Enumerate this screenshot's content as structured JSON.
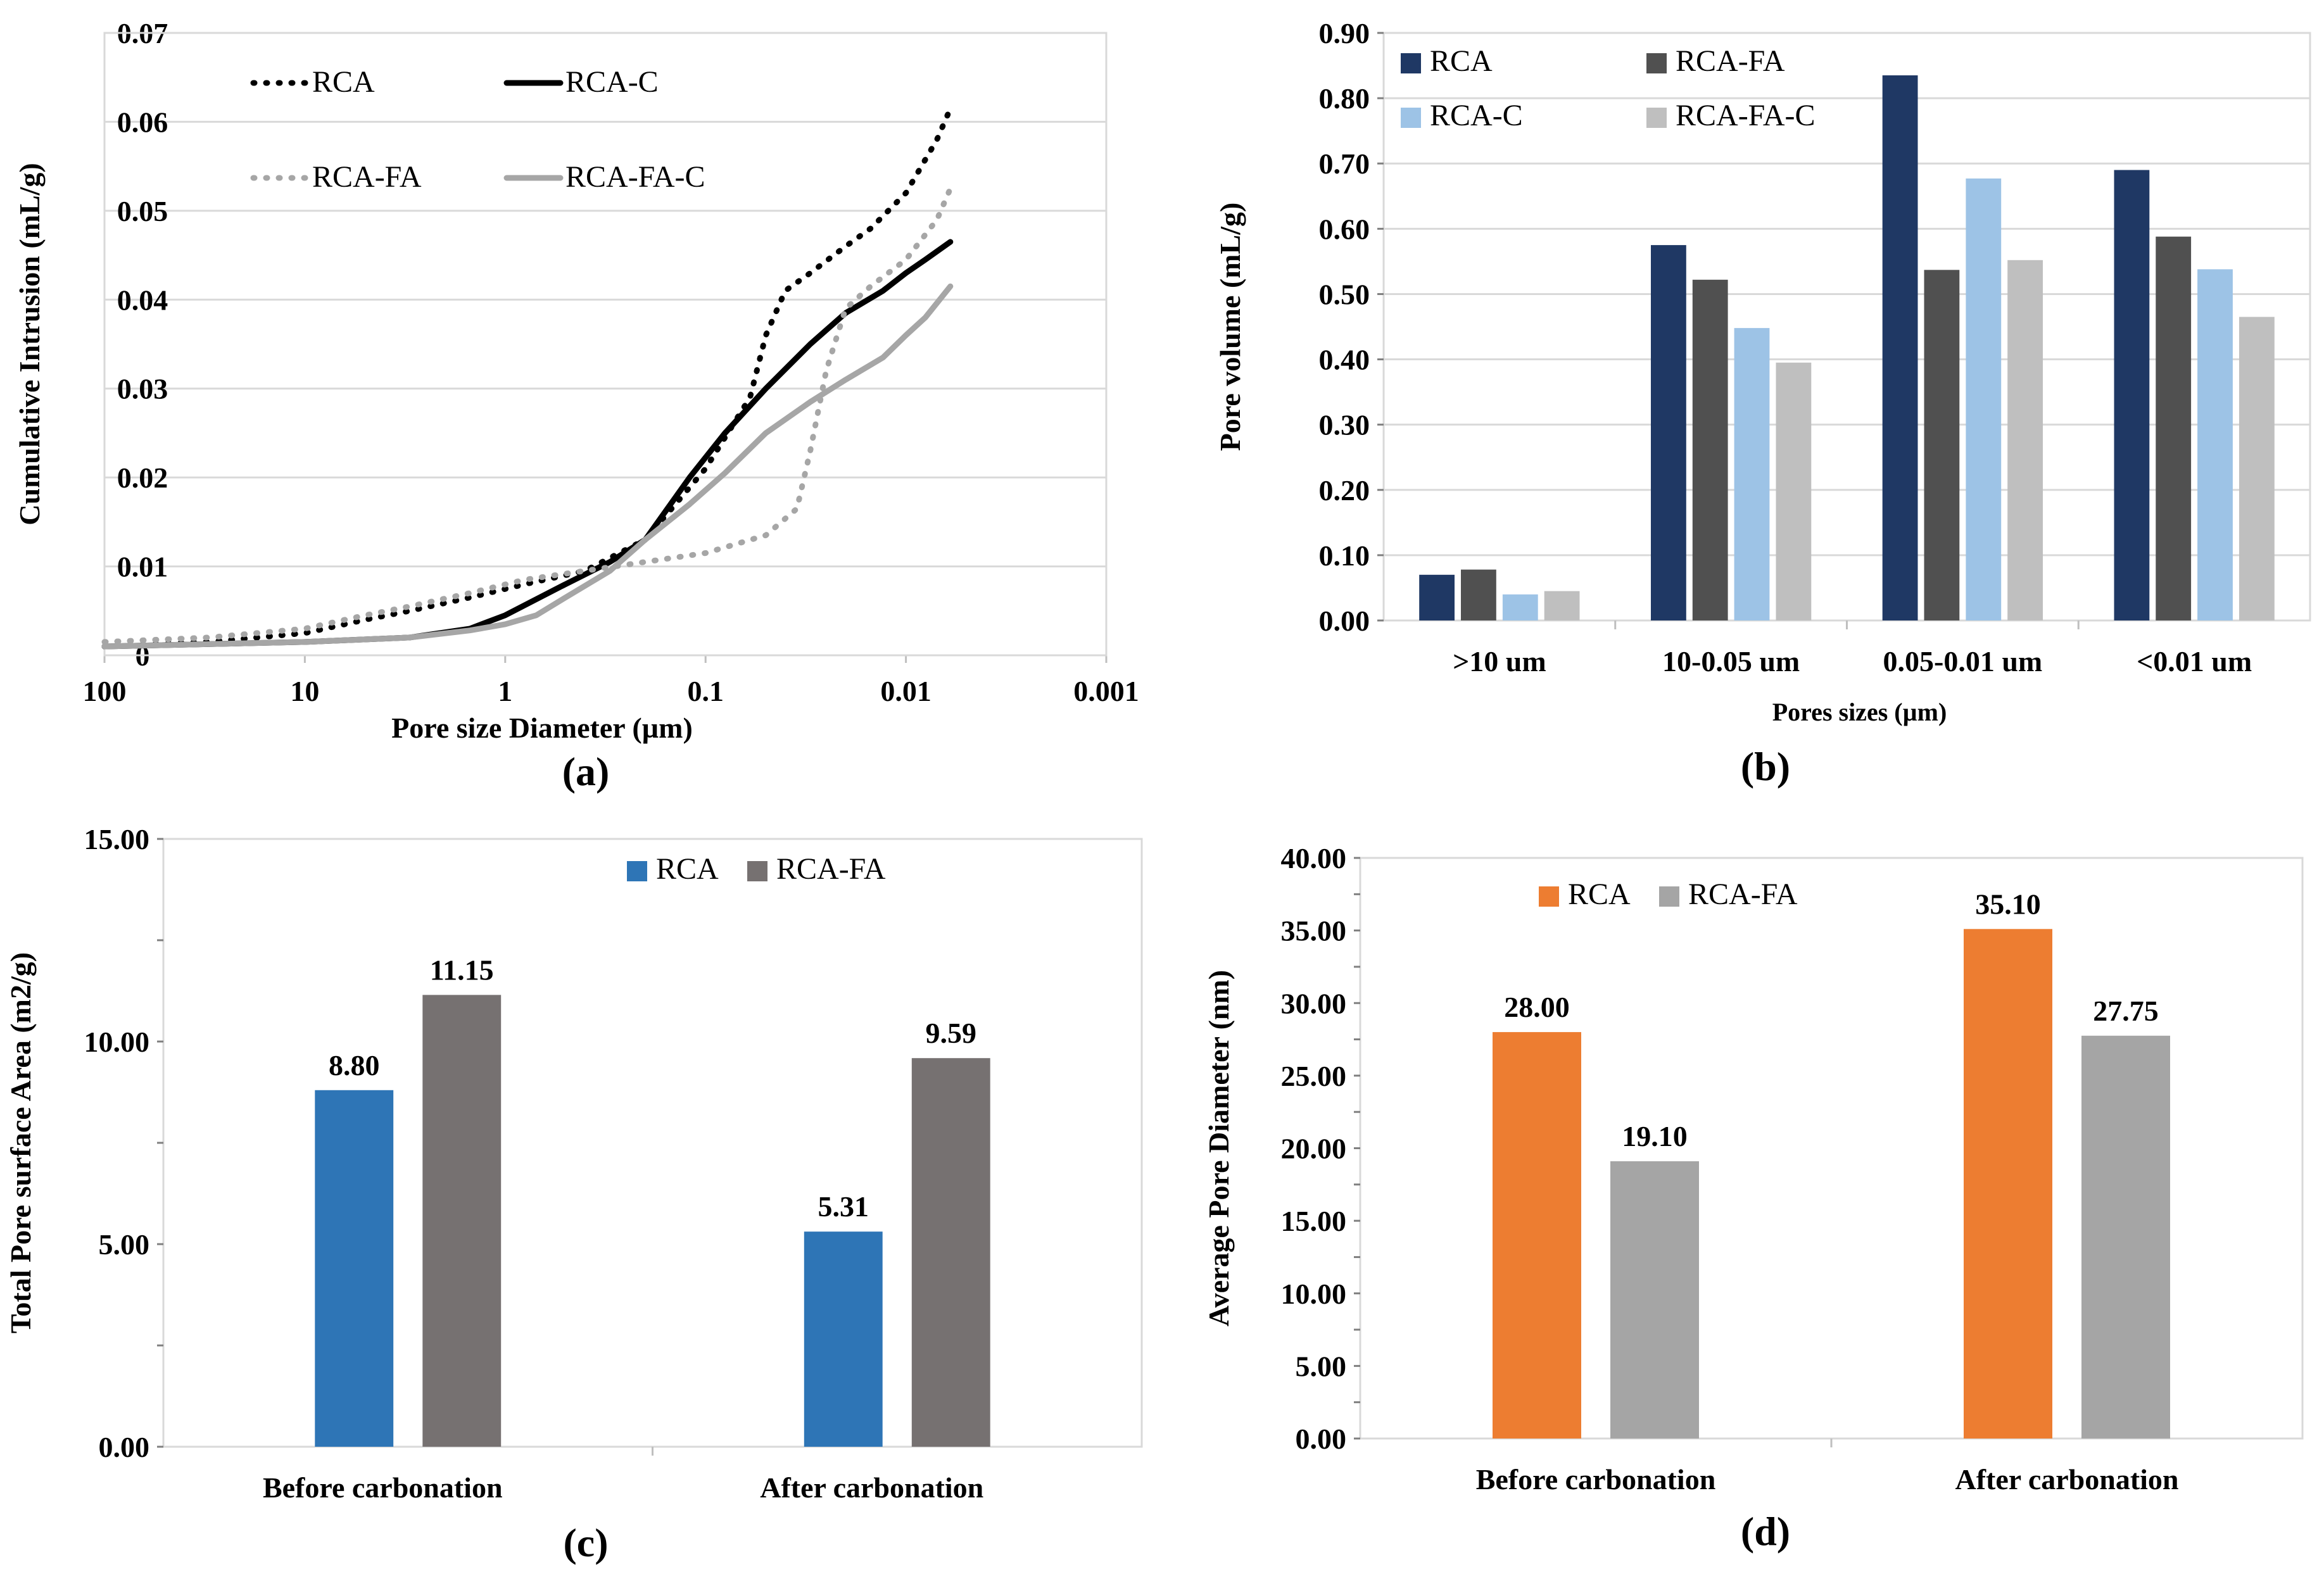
{
  "chart_data": [
    {
      "id": "a",
      "type": "line",
      "panel_label": "(a)",
      "title": "",
      "xlabel": "Pore size Diameter (µm)",
      "ylabel": "Cumulative Intrusion (mL/g)",
      "x_scale": "log-reversed",
      "xlim": [
        100,
        0.001
      ],
      "ylim": [
        0,
        0.07
      ],
      "x_tick_labels": [
        "100",
        "10",
        "1",
        "0.1",
        "0.01",
        "0.001"
      ],
      "x_tick_values": [
        100,
        10,
        1,
        0.1,
        0.01,
        0.001
      ],
      "y_tick_labels": [
        "0",
        "0.01",
        "0.02",
        "0.03",
        "0.04",
        "0.05",
        "0.06",
        "0.07"
      ],
      "y_tick_values": [
        0,
        0.01,
        0.02,
        0.03,
        0.04,
        0.05,
        0.06,
        0.07
      ],
      "grid": "horizontal",
      "legend_position": "top-left, inside",
      "series": [
        {
          "name": "RCA",
          "color": "#000000",
          "dash": "dotted",
          "x": [
            100,
            30,
            10,
            5,
            3,
            1.5,
            0.8,
            0.4,
            0.2,
            0.1,
            0.06,
            0.05,
            0.04,
            0.03,
            0.02,
            0.015,
            0.01,
            0.007,
            0.006
          ],
          "y": [
            0.001,
            0.0015,
            0.0025,
            0.004,
            0.005,
            0.0065,
            0.008,
            0.0095,
            0.013,
            0.021,
            0.029,
            0.036,
            0.041,
            0.043,
            0.046,
            0.048,
            0.052,
            0.058,
            0.0615
          ]
        },
        {
          "name": "RCA-C",
          "color": "#000000",
          "dash": "solid",
          "x": [
            100,
            10,
            3,
            1.5,
            1,
            0.5,
            0.3,
            0.2,
            0.12,
            0.08,
            0.05,
            0.03,
            0.02,
            0.013,
            0.01,
            0.008,
            0.006
          ],
          "y": [
            0.001,
            0.0015,
            0.002,
            0.003,
            0.0045,
            0.008,
            0.0105,
            0.013,
            0.02,
            0.025,
            0.03,
            0.035,
            0.0385,
            0.041,
            0.043,
            0.0445,
            0.0465
          ]
        },
        {
          "name": "RCA-FA",
          "color": "#a6a6a6",
          "dash": "dotted",
          "x": [
            100,
            30,
            10,
            5,
            3,
            1.5,
            0.8,
            0.4,
            0.2,
            0.1,
            0.05,
            0.035,
            0.03,
            0.025,
            0.02,
            0.015,
            0.01,
            0.007,
            0.006
          ],
          "y": [
            0.0015,
            0.002,
            0.003,
            0.0045,
            0.0055,
            0.007,
            0.0085,
            0.0095,
            0.0105,
            0.0115,
            0.0135,
            0.0165,
            0.023,
            0.032,
            0.039,
            0.0415,
            0.0445,
            0.049,
            0.0525
          ]
        },
        {
          "name": "RCA-FA-C",
          "color": "#a6a6a6",
          "dash": "solid",
          "x": [
            100,
            10,
            3,
            1.5,
            1,
            0.7,
            0.5,
            0.3,
            0.2,
            0.12,
            0.08,
            0.05,
            0.03,
            0.02,
            0.013,
            0.01,
            0.008,
            0.006
          ],
          "y": [
            0.001,
            0.0015,
            0.002,
            0.0028,
            0.0035,
            0.0045,
            0.0065,
            0.0095,
            0.013,
            0.017,
            0.0205,
            0.025,
            0.0285,
            0.031,
            0.0335,
            0.036,
            0.038,
            0.0415
          ]
        }
      ]
    },
    {
      "id": "b",
      "type": "bar",
      "panel_label": "(b)",
      "title": "",
      "xlabel": "Pores sizes  (µm)",
      "ylabel": "Pore volume (mL/g)",
      "ylim": [
        0,
        0.9
      ],
      "y_tick_labels": [
        "0.00",
        "0.10",
        "0.20",
        "0.30",
        "0.40",
        "0.50",
        "0.60",
        "0.70",
        "0.80",
        "0.90"
      ],
      "y_tick_values": [
        0,
        0.1,
        0.2,
        0.3,
        0.4,
        0.5,
        0.6,
        0.7,
        0.8,
        0.9
      ],
      "grid": "horizontal",
      "legend_position": "top, inside",
      "categories": [
        ">10 um",
        "10-0.05 um",
        "0.05-0.01 um",
        "<0.01 um"
      ],
      "series": [
        {
          "name": "RCA",
          "color": "#1f3864",
          "values": [
            0.07,
            0.575,
            0.835,
            0.69
          ]
        },
        {
          "name": "RCA-FA",
          "color": "#505050",
          "values": [
            0.078,
            0.522,
            0.537,
            0.588
          ]
        },
        {
          "name": "RCA-C",
          "color": "#9dc3e6",
          "values": [
            0.04,
            0.448,
            0.677,
            0.538
          ]
        },
        {
          "name": "RCA-FA-C",
          "color": "#bfbfbf",
          "values": [
            0.045,
            0.395,
            0.552,
            0.465
          ]
        }
      ]
    },
    {
      "id": "c",
      "type": "bar",
      "panel_label": "(c)",
      "title": "",
      "xlabel": "",
      "ylabel": "Total Pore  surface Area (m2/g)",
      "ylim": [
        0,
        15
      ],
      "y_tick_labels": [
        "0.00",
        "5.00",
        "10.00",
        "15.00"
      ],
      "y_tick_values": [
        0,
        5,
        10,
        15
      ],
      "grid": "none",
      "legend_position": "top-center, inside",
      "categories": [
        "Before carbonation",
        "After carbonation"
      ],
      "series": [
        {
          "name": "RCA",
          "color": "#2e75b6",
          "values": [
            8.8,
            5.31
          ],
          "labels": [
            "8.80",
            "5.31"
          ]
        },
        {
          "name": "RCA-FA",
          "color": "#767171",
          "values": [
            11.15,
            9.59
          ],
          "labels": [
            "11.15",
            "9.59"
          ]
        }
      ]
    },
    {
      "id": "d",
      "type": "bar",
      "panel_label": "(d)",
      "title": "",
      "xlabel": "",
      "ylabel": "Average Pore Diameter  (nm)",
      "ylim": [
        0,
        40
      ],
      "y_tick_labels": [
        "0.00",
        "5.00",
        "10.00",
        "15.00",
        "20.00",
        "25.00",
        "30.00",
        "35.00",
        "40.00"
      ],
      "y_tick_values": [
        0,
        5,
        10,
        15,
        20,
        25,
        30,
        35,
        40
      ],
      "grid": "none",
      "legend_position": "top-left, inside",
      "categories": [
        "Before carbonation",
        "After carbonation"
      ],
      "series": [
        {
          "name": "RCA",
          "color": "#ed7d31",
          "values": [
            28.0,
            35.1
          ],
          "labels": [
            "28.00",
            "35.10"
          ]
        },
        {
          "name": "RCA-FA",
          "color": "#a5a5a5",
          "values": [
            19.1,
            27.75
          ],
          "labels": [
            "19.10",
            "27.75"
          ]
        }
      ]
    }
  ]
}
